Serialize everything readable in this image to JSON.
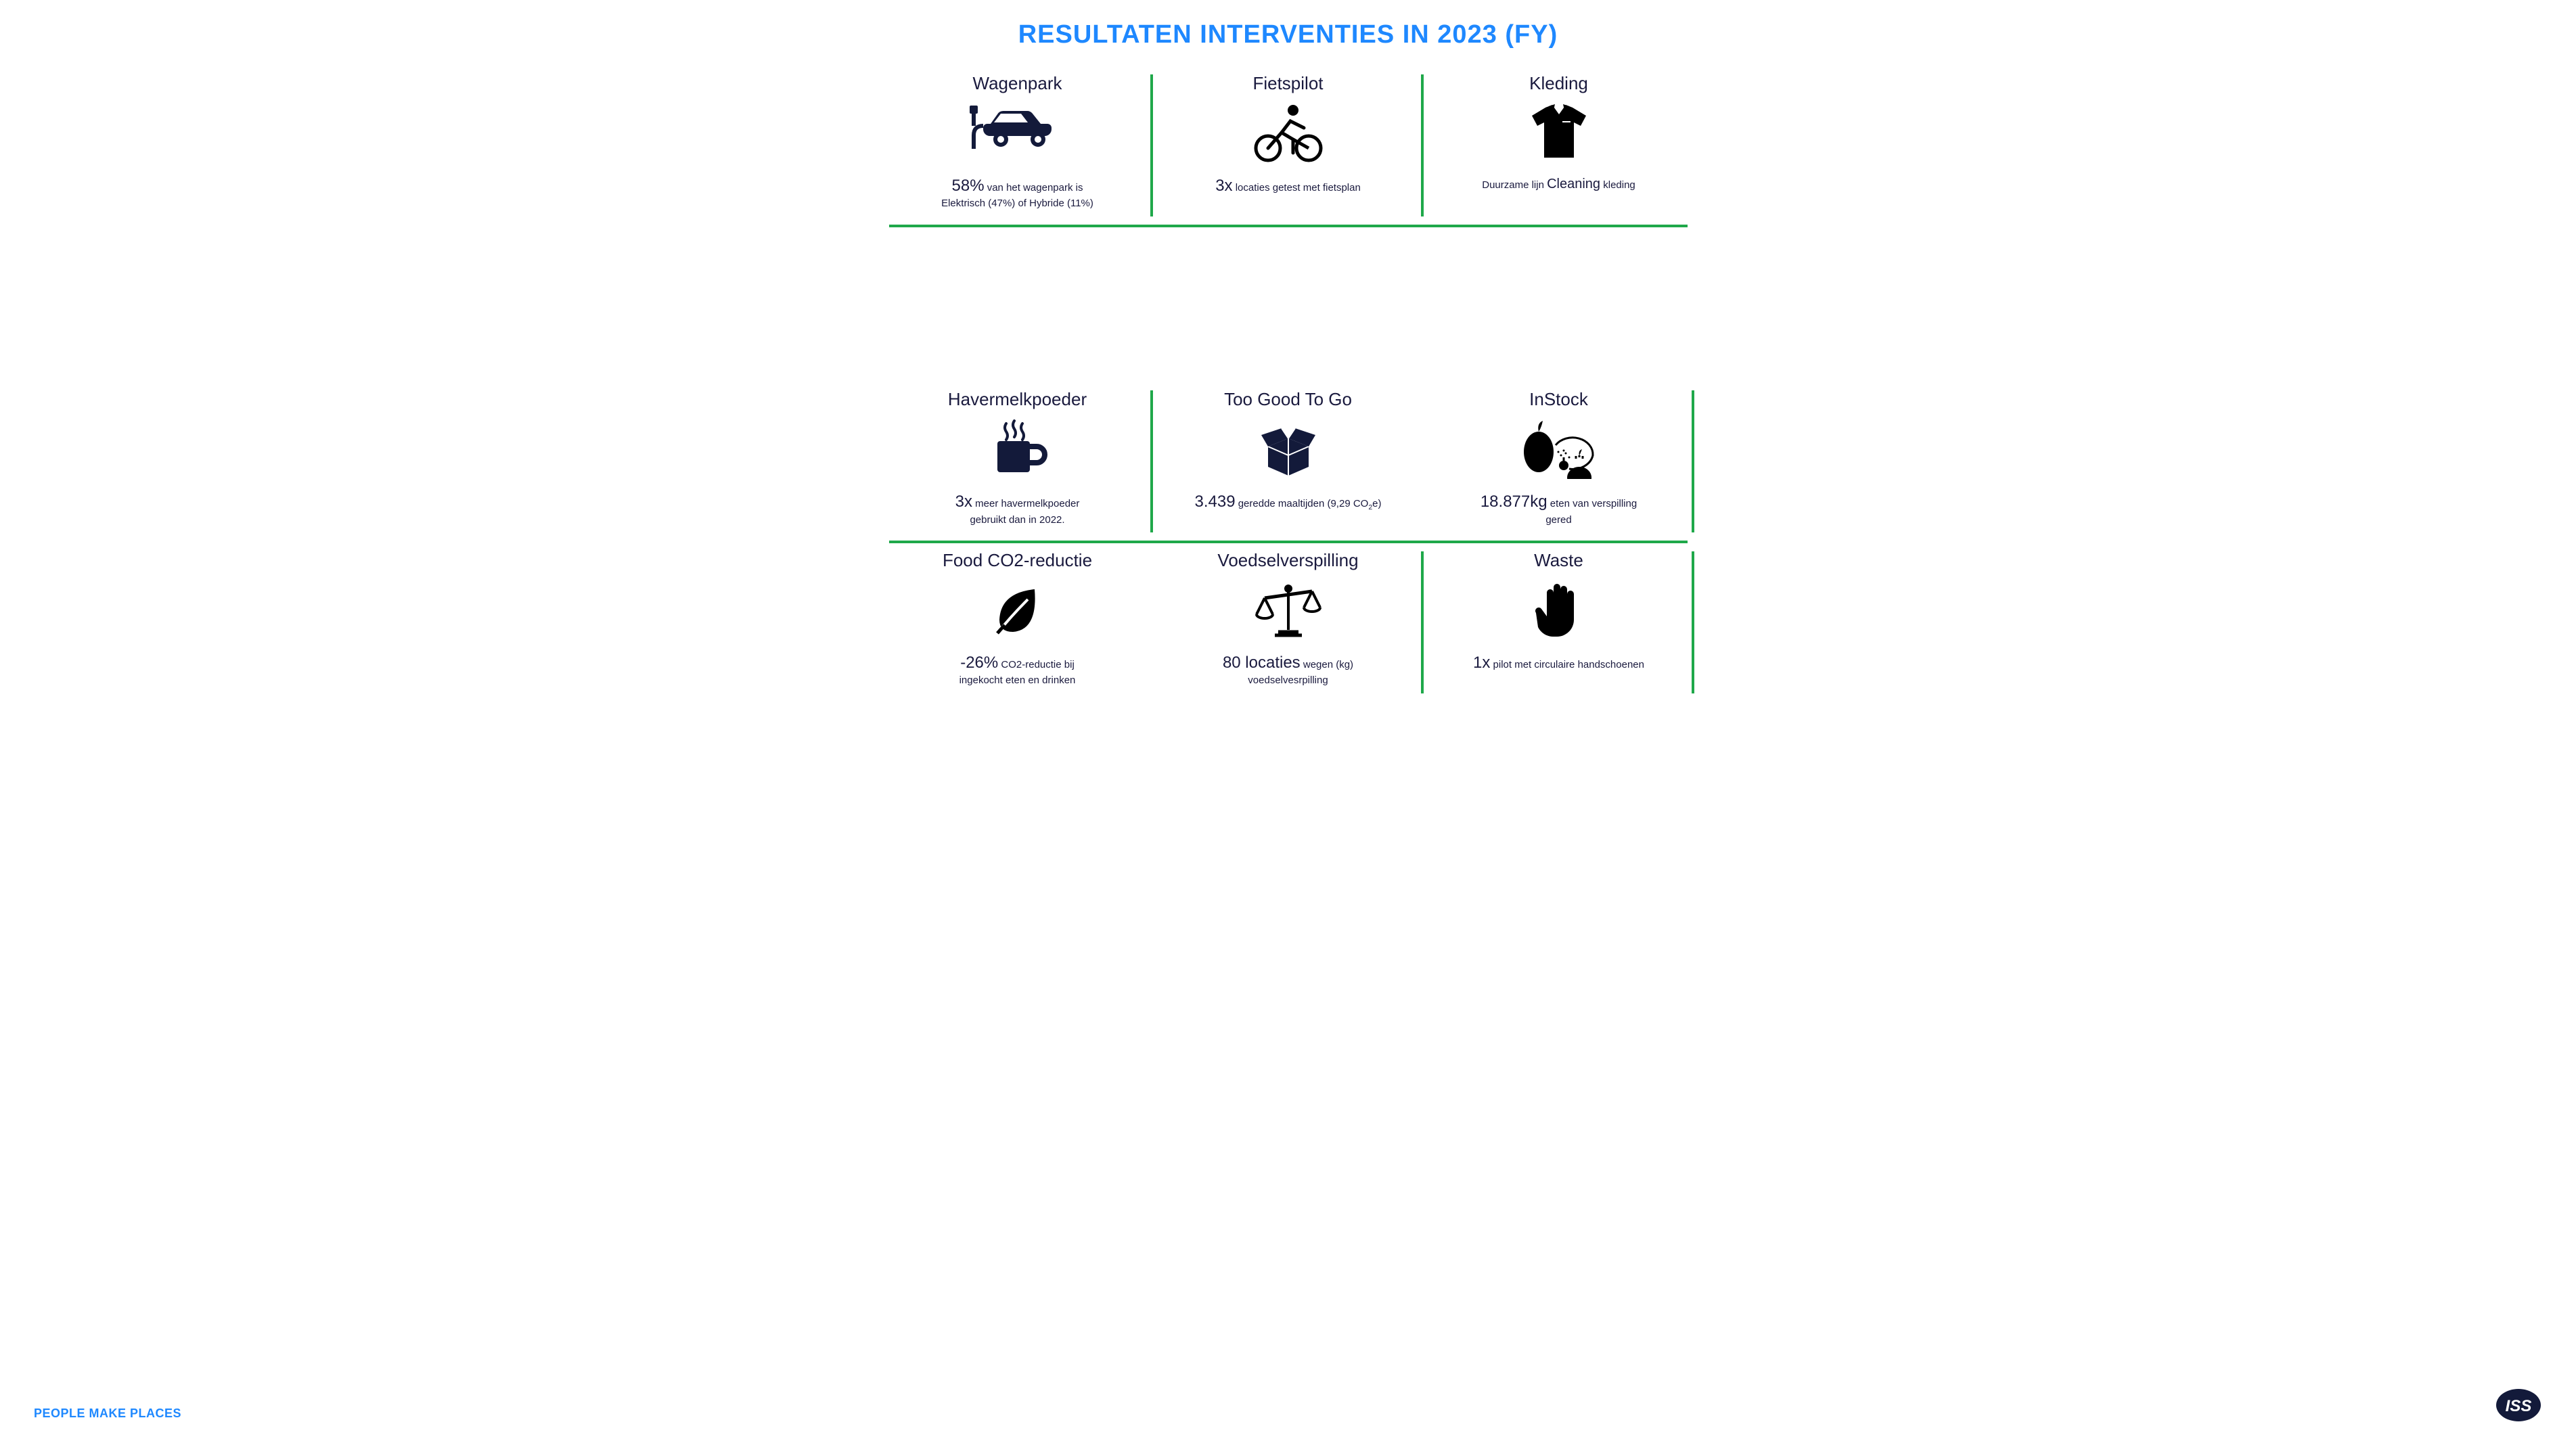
{
  "colors": {
    "title_blue": "#1e88ff",
    "divider_green": "#1fa84a",
    "dark_navy": "#131a3a",
    "text_dark": "#1a1a3e",
    "background": "#ffffff"
  },
  "title": "RESULTATEN INTERVENTIES IN 2023 (FY)",
  "footer_tagline": "PEOPLE MAKE PLACES",
  "footer_logo_text": "ISS",
  "cells": [
    {
      "heading": "Wagenpark",
      "metric": "58%",
      "rest_html": " van het wagenpark is<br>Elektrisch (47%) of Hybride (11%)"
    },
    {
      "heading": "Fietspilot",
      "metric": "3x",
      "rest_html": " locaties getest met fietsplan"
    },
    {
      "heading": "Kleding",
      "metric": "",
      "rest_html": "Duurzame lijn <span class=\"med\">Cleaning</span> kleding"
    },
    {
      "heading": "Havermelkpoeder",
      "metric": "3x",
      "rest_html": " meer havermelkpoeder<br>gebruikt dan in 2022."
    },
    {
      "heading": "Too Good To Go",
      "metric": "3.439",
      "rest_html": " geredde maaltijden (9,29 CO<sub>2</sub>e)"
    },
    {
      "heading": "InStock",
      "metric": "18.877kg",
      "rest_html": " eten van verspilling<br>gered"
    },
    {
      "heading": "Food CO2-reductie",
      "metric": "-26%",
      "rest_html": " CO2-reductie bij<br>ingekocht eten en drinken"
    },
    {
      "heading": "Voedselverspilling",
      "metric": "80 locaties",
      "rest_html": " wegen (kg)<br>voedselvesrpilling"
    },
    {
      "heading": "Waste",
      "metric": "1x",
      "rest_html": " pilot met circulaire handschoenen"
    }
  ]
}
